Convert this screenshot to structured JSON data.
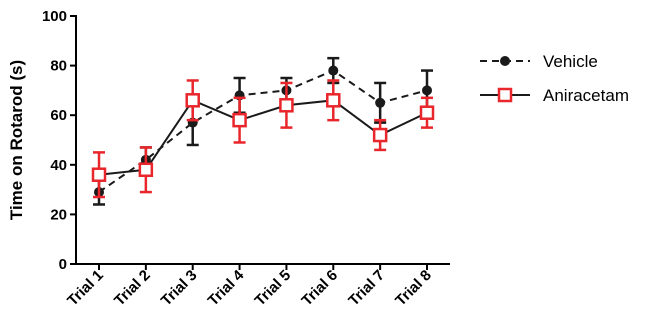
{
  "chart_data": {
    "type": "line",
    "title": "",
    "xlabel": "",
    "ylabel": "Time on Rotarod (s)",
    "categories": [
      "Trial 1",
      "Trial 2",
      "Trial 3",
      "Trial 4",
      "Trial 5",
      "Trial 6",
      "Trial 7",
      "Trial 8"
    ],
    "ylim": [
      0,
      100
    ],
    "yticks": [
      0,
      20,
      40,
      60,
      80,
      100
    ],
    "grid": false,
    "legend_position": "right",
    "series": [
      {
        "name": "Vehicle",
        "color": "#1a1a1a",
        "line_style": "dashed",
        "marker": "filled-circle",
        "values": [
          29,
          42,
          57,
          68,
          70,
          78,
          65,
          70
        ],
        "errors": [
          5,
          5,
          9,
          7,
          5,
          5,
          8,
          8
        ]
      },
      {
        "name": "Aniracetam",
        "color": "#e8262b",
        "line_style": "solid",
        "line_color": "#1a1a1a",
        "marker": "open-square",
        "values": [
          36,
          38,
          66,
          58,
          64,
          66,
          52,
          61
        ],
        "errors": [
          9,
          9,
          8,
          9,
          9,
          8,
          6,
          6
        ]
      }
    ]
  }
}
